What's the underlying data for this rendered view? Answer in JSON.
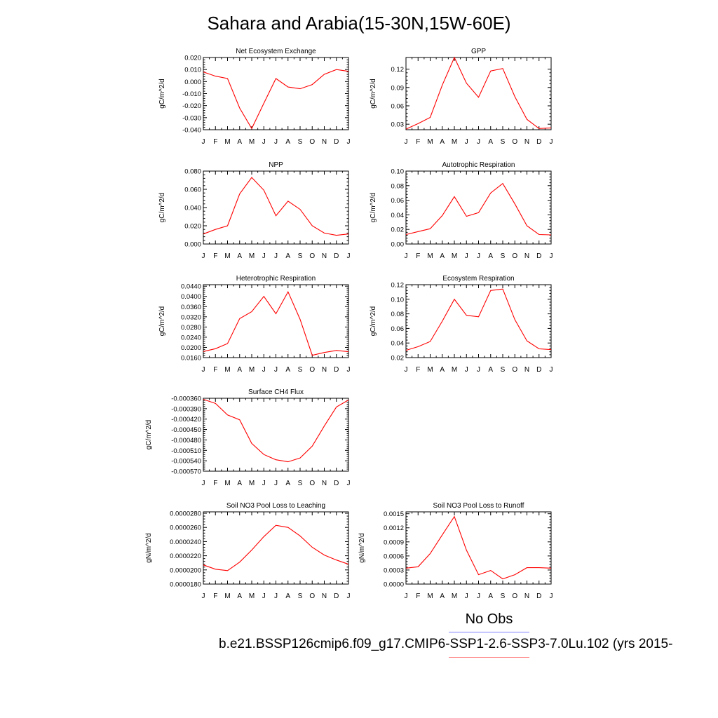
{
  "page": {
    "title": "Sahara and Arabia(15-30N,15W-60E)",
    "legend_label": "No Obs",
    "case_label": "b.e21.BSSP126cmip6.f09_g17.CMIP6-SSP1-2.6-SSP3-7.0Lu.102 (yrs 2015-",
    "colors": {
      "series": "#ff0000",
      "legend_obs": "#8080ff",
      "legend_case": "#ff8080"
    }
  },
  "chart_data": [
    {
      "type": "line",
      "title": "Net Ecosystem Exchange",
      "ylabel": "gC/m^2/d",
      "x": [
        "J",
        "F",
        "M",
        "A",
        "M",
        "J",
        "J",
        "A",
        "S",
        "O",
        "N",
        "D",
        "J"
      ],
      "ylim": [
        -0.04,
        0.02
      ],
      "yticks": [
        "-0.040",
        "-0.030",
        "-0.020",
        "-0.010",
        "0.000",
        "0.010",
        "0.020"
      ],
      "series": [
        {
          "values": [
            0.008,
            0.0045,
            0.0025,
            -0.022,
            -0.039,
            -0.018,
            0.0025,
            -0.0045,
            -0.006,
            -0.0025,
            0.006,
            0.01,
            0.0085
          ]
        }
      ]
    },
    {
      "type": "line",
      "title": "GPP",
      "ylabel": "gC/m^2/d",
      "x": [
        "J",
        "F",
        "M",
        "A",
        "M",
        "J",
        "J",
        "A",
        "S",
        "O",
        "N",
        "D",
        "J"
      ],
      "ylim": [
        0.021,
        0.139
      ],
      "yticks": [
        "0.03",
        "0.06",
        "0.09",
        "0.12"
      ],
      "series": [
        {
          "values": [
            0.022,
            0.031,
            0.041,
            0.094,
            0.139,
            0.097,
            0.074,
            0.117,
            0.121,
            0.075,
            0.038,
            0.023,
            0.024
          ]
        }
      ]
    },
    {
      "type": "line",
      "title": "NPP",
      "ylabel": "gC/m^2/d",
      "x": [
        "J",
        "F",
        "M",
        "A",
        "M",
        "J",
        "J",
        "A",
        "S",
        "O",
        "N",
        "D",
        "J"
      ],
      "ylim": [
        0.0,
        0.08
      ],
      "yticks": [
        "0.000",
        "0.020",
        "0.040",
        "0.060",
        "0.080"
      ],
      "series": [
        {
          "values": [
            0.011,
            0.016,
            0.02,
            0.055,
            0.073,
            0.059,
            0.031,
            0.047,
            0.038,
            0.02,
            0.012,
            0.0095,
            0.011
          ]
        }
      ]
    },
    {
      "type": "line",
      "title": "Autotrophic Respiration",
      "ylabel": "gC/m^2/d",
      "x": [
        "J",
        "F",
        "M",
        "A",
        "M",
        "J",
        "J",
        "A",
        "S",
        "O",
        "N",
        "D",
        "J"
      ],
      "ylim": [
        0.0,
        0.1
      ],
      "yticks": [
        "0.00",
        "0.02",
        "0.04",
        "0.06",
        "0.08",
        "0.10"
      ],
      "series": [
        {
          "values": [
            0.013,
            0.017,
            0.021,
            0.039,
            0.065,
            0.038,
            0.043,
            0.07,
            0.083,
            0.055,
            0.025,
            0.013,
            0.0125
          ]
        }
      ]
    },
    {
      "type": "line",
      "title": "Heterotrophic Respiration",
      "ylabel": "gC/m^2/d",
      "x": [
        "J",
        "F",
        "M",
        "A",
        "M",
        "J",
        "J",
        "A",
        "S",
        "O",
        "N",
        "D",
        "J"
      ],
      "ylim": [
        0.016,
        0.0446
      ],
      "yticks": [
        "0.0160",
        "0.0200",
        "0.0240",
        "0.0280",
        "0.0320",
        "0.0360",
        "0.0400",
        "0.0440"
      ],
      "series": [
        {
          "values": [
            0.0184,
            0.0195,
            0.0215,
            0.0313,
            0.034,
            0.04,
            0.0332,
            0.0418,
            0.031,
            0.0169,
            0.018,
            0.0188,
            0.0183
          ]
        }
      ]
    },
    {
      "type": "line",
      "title": "Ecosystem Respiration",
      "ylabel": "gC/m^2/d",
      "x": [
        "J",
        "F",
        "M",
        "A",
        "M",
        "J",
        "J",
        "A",
        "S",
        "O",
        "N",
        "D",
        "J"
      ],
      "ylim": [
        0.02,
        0.12
      ],
      "yticks": [
        "0.02",
        "0.04",
        "0.06",
        "0.08",
        "0.10",
        "0.12"
      ],
      "series": [
        {
          "values": [
            0.03,
            0.035,
            0.042,
            0.07,
            0.1,
            0.078,
            0.076,
            0.112,
            0.114,
            0.072,
            0.043,
            0.032,
            0.031
          ]
        }
      ]
    },
    {
      "type": "line",
      "title": "Surface CH4 Flux",
      "ylabel": "gC/m^2/d",
      "x": [
        "J",
        "F",
        "M",
        "A",
        "M",
        "J",
        "J",
        "A",
        "S",
        "O",
        "N",
        "D",
        "J"
      ],
      "ylim": [
        -0.00057,
        -0.00036
      ],
      "yticks": [
        "-0.000570",
        "-0.000540",
        "-0.000510",
        "-0.000480",
        "-0.000450",
        "-0.000420",
        "-0.000390",
        "-0.000360"
      ],
      "series": [
        {
          "values": [
            -0.000363,
            -0.000375,
            -0.000408,
            -0.000422,
            -0.00049,
            -0.000522,
            -0.000537,
            -0.000543,
            -0.000532,
            -0.000498,
            -0.00044,
            -0.000385,
            -0.000365
          ]
        }
      ]
    },
    {
      "type": "line",
      "title": "Soil NO3 Pool Loss to Leaching",
      "ylabel": "gN/m^2/d",
      "x": [
        "J",
        "F",
        "M",
        "A",
        "M",
        "J",
        "J",
        "A",
        "S",
        "O",
        "N",
        "D",
        "J"
      ],
      "ylim": [
        1.8e-05,
        2.82e-05
      ],
      "yticks": [
        "0.0000180",
        "0.0000200",
        "0.0000220",
        "0.0000240",
        "0.0000260",
        "0.0000280"
      ],
      "series": [
        {
          "values": [
            2.07e-05,
            2.01e-05,
            1.99e-05,
            2.11e-05,
            2.28e-05,
            2.47e-05,
            2.63e-05,
            2.6e-05,
            2.48e-05,
            2.32e-05,
            2.21e-05,
            2.14e-05,
            2.08e-05
          ]
        }
      ]
    },
    {
      "type": "line",
      "title": "Soil NO3 Pool Loss to Runoff",
      "ylabel": "gN/m^2/d",
      "x": [
        "J",
        "F",
        "M",
        "A",
        "M",
        "J",
        "J",
        "A",
        "S",
        "O",
        "N",
        "D",
        "J"
      ],
      "ylim": [
        0.0,
        0.00154
      ],
      "yticks": [
        "0.0000",
        "0.0003",
        "0.0006",
        "0.0009",
        "0.0012",
        "0.0015"
      ],
      "series": [
        {
          "values": [
            0.00034,
            0.00037,
            0.00065,
            0.00105,
            0.00144,
            0.00072,
            0.0002,
            0.00029,
            0.00011,
            0.0002,
            0.00035,
            0.00035,
            0.00034
          ]
        }
      ]
    }
  ]
}
